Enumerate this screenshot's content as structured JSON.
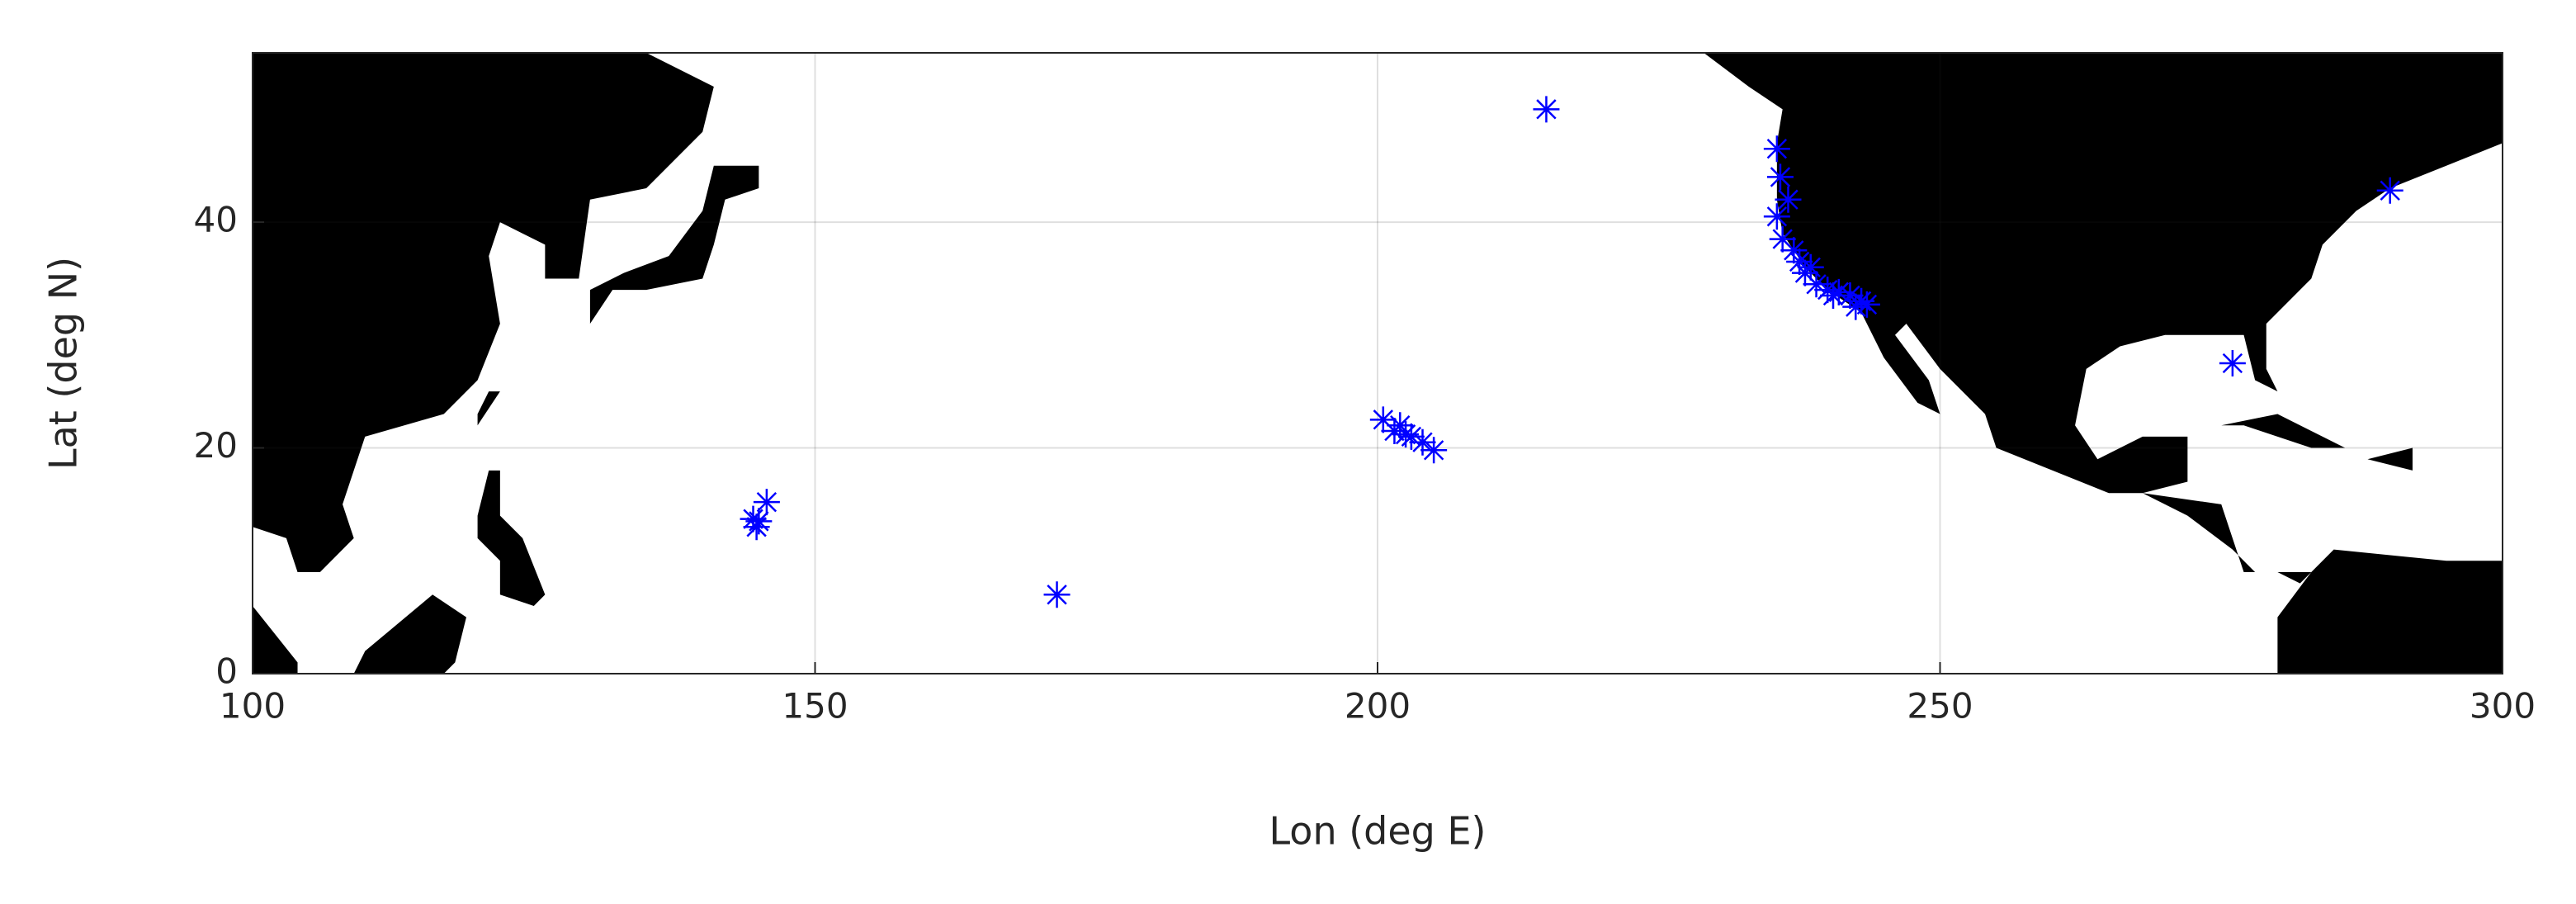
{
  "chart_data": {
    "type": "scatter",
    "xlabel": "Lon (deg E)",
    "ylabel": "Lat (deg N)",
    "x": [
      145,
      144.8,
      145.7,
      144.5,
      171.5,
      200.5,
      201.5,
      202,
      203,
      204,
      205,
      202.5,
      215,
      235.5,
      235.8,
      235.5,
      236,
      237,
      237.5,
      238,
      239,
      240,
      241,
      242,
      243,
      243.5,
      242.5,
      236.5,
      238.5,
      240.5,
      276,
      290
    ],
    "values": [
      13.5,
      13,
      15.2,
      13.7,
      7,
      22.5,
      21.5,
      22,
      21,
      20.5,
      19.8,
      21.2,
      50,
      46.5,
      44,
      40.5,
      38.5,
      37.5,
      36.5,
      35.5,
      34.5,
      34,
      33.8,
      33.5,
      33,
      32.7,
      32.5,
      42,
      36,
      33.5,
      27.5,
      42.8
    ],
    "color": "#0000ff",
    "xlim": [
      100,
      300
    ],
    "ylim": [
      0,
      55
    ],
    "xticks": [
      100,
      150,
      200,
      250,
      300
    ],
    "yticks": [
      0,
      20,
      40
    ],
    "grid": true
  }
}
